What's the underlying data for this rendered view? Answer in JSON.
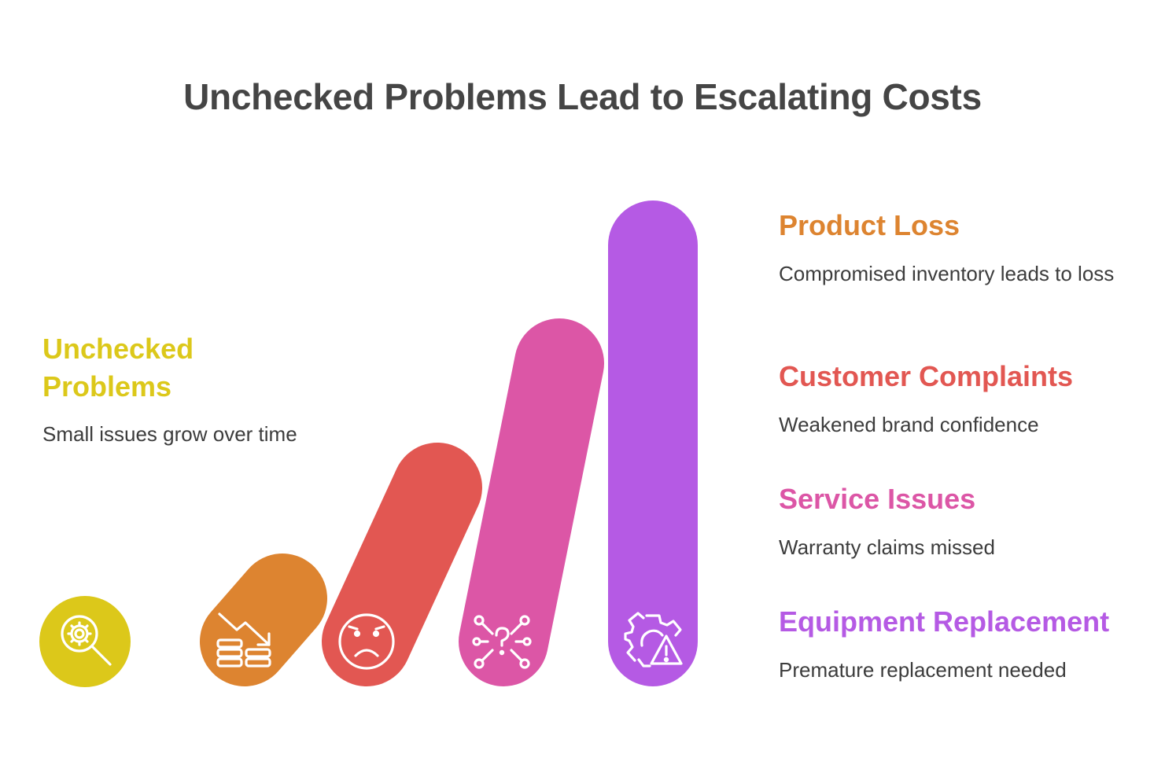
{
  "title": "Unchecked Problems Lead to Escalating Costs",
  "colors": {
    "yellow": "#dcc81a",
    "orange": "#dd8430",
    "red": "#e25752",
    "pink": "#dc56a6",
    "purple": "#b55ae4",
    "text": "#3c3c3c",
    "title": "#454545"
  },
  "start": {
    "heading": "Unchecked Problems",
    "description": "Small issues grow over time",
    "icon": "search-gear-icon"
  },
  "stages": [
    {
      "heading": "Product Loss",
      "description": "Compromised inventory leads to loss",
      "color": "#dd8430",
      "icon": "declining-coins-icon"
    },
    {
      "heading": "Customer Complaints",
      "description": "Weakened brand confidence",
      "color": "#e25752",
      "icon": "sad-face-icon"
    },
    {
      "heading": "Service Issues",
      "description": "Warranty claims missed",
      "color": "#dc56a6",
      "icon": "network-question-icon"
    },
    {
      "heading": "Equipment Replacement",
      "description": "Premature replacement needed",
      "color": "#b55ae4",
      "icon": "gear-warning-icon"
    }
  ]
}
